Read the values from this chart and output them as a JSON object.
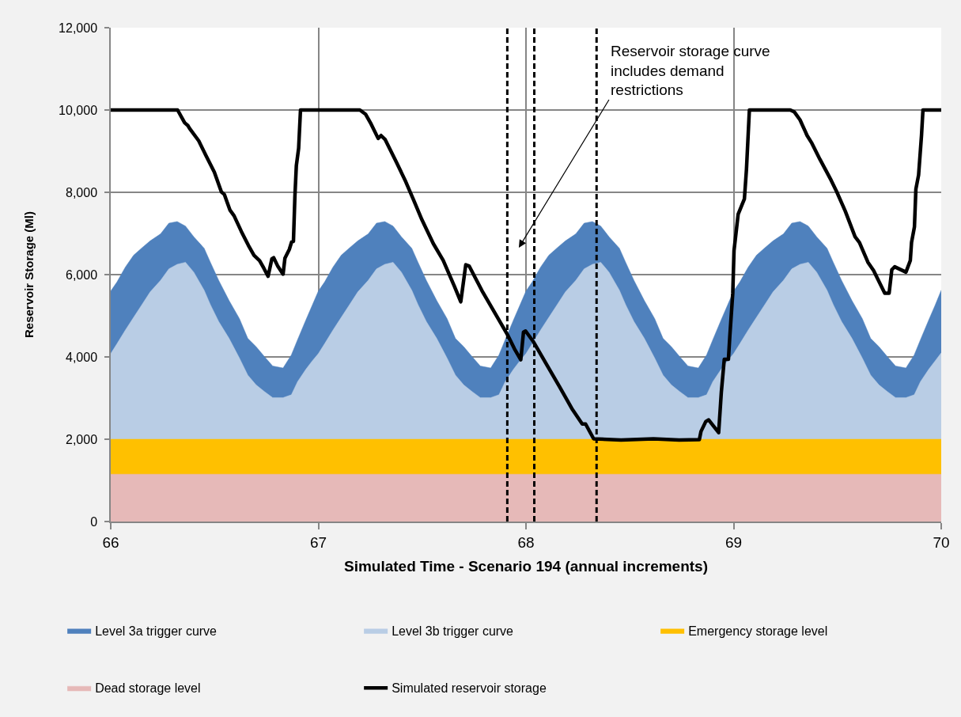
{
  "chart_data": {
    "type": "area",
    "xlabel": "Simulated Time - Scenario 194 (annual increments)",
    "ylabel": "Reservoir Storage (Ml)",
    "xlim": [
      66,
      70
    ],
    "xticks": [
      66,
      67,
      68,
      69,
      70
    ],
    "ylim": [
      0,
      12000
    ],
    "yticks": [
      0,
      {
        "value": 2000,
        "label": "2,000"
      },
      {
        "value": 4000,
        "label": "4,000"
      },
      {
        "value": 6000,
        "label": "6,000"
      },
      {
        "value": 8000,
        "label": "8,000"
      },
      {
        "value": 10000,
        "label": "10,000"
      },
      {
        "value": 12000,
        "label": "12,000"
      }
    ],
    "grid": true,
    "legend": "bottom",
    "x": [
      66,
      66.03,
      66.07,
      66.11,
      66.15,
      66.19,
      66.24,
      66.28,
      66.32,
      66.36,
      66.4,
      66.45,
      66.48,
      66.52,
      66.57,
      66.62,
      66.66,
      66.7,
      66.74,
      66.78,
      66.83,
      66.87,
      66.9,
      66.94,
      66.97,
      67,
      67.03,
      67.07,
      67.11,
      67.15,
      67.19,
      67.24,
      67.28,
      67.32,
      67.36,
      67.4,
      67.45,
      67.48,
      67.52,
      67.57,
      67.62,
      67.66,
      67.7,
      67.74,
      67.78,
      67.83,
      67.87,
      67.9,
      67.94,
      67.97,
      68,
      68.03,
      68.07,
      68.11,
      68.15,
      68.19,
      68.24,
      68.28,
      68.32,
      68.36,
      68.4,
      68.45,
      68.48,
      68.52,
      68.57,
      68.62,
      68.66,
      68.7,
      68.74,
      68.78,
      68.83,
      68.87,
      68.9,
      68.94,
      68.97,
      69,
      69.03,
      69.07,
      69.11,
      69.15,
      69.19,
      69.24,
      69.28,
      69.32,
      69.36,
      69.4,
      69.45,
      69.48,
      69.52,
      69.57,
      69.62,
      69.66,
      69.7,
      69.74,
      69.78,
      69.83,
      69.87,
      69.9,
      69.94,
      69.97,
      70
    ],
    "series": [
      {
        "name": "Level 3a trigger curve",
        "color": "#4f81bd",
        "values": [
          5600,
          5820,
          6180,
          6470,
          6650,
          6820,
          6990,
          7250,
          7290,
          7180,
          6920,
          6640,
          6300,
          5860,
          5370,
          4930,
          4450,
          4250,
          4010,
          3780,
          3730,
          4050,
          4420,
          4900,
          5250,
          5600,
          5820,
          6180,
          6470,
          6650,
          6820,
          6990,
          7250,
          7290,
          7180,
          6920,
          6640,
          6300,
          5860,
          5370,
          4930,
          4450,
          4250,
          4010,
          3780,
          3730,
          4050,
          4420,
          4900,
          5250,
          5600,
          5820,
          6180,
          6470,
          6650,
          6820,
          6990,
          7250,
          7290,
          7180,
          6920,
          6640,
          6300,
          5860,
          5370,
          4930,
          4450,
          4250,
          4010,
          3780,
          3730,
          4050,
          4420,
          4900,
          5250,
          5600,
          5820,
          6180,
          6470,
          6650,
          6820,
          6990,
          7250,
          7290,
          7180,
          6920,
          6640,
          6300,
          5860,
          5370,
          4930,
          4450,
          4250,
          4010,
          3780,
          3730,
          4050,
          4420,
          4900,
          5250,
          5620
        ]
      },
      {
        "name": "Level 3b trigger curve",
        "color": "#b9cde5",
        "values": [
          4080,
          4320,
          4650,
          4960,
          5270,
          5580,
          5860,
          6140,
          6250,
          6300,
          6060,
          5620,
          5270,
          4860,
          4450,
          3970,
          3560,
          3320,
          3160,
          3010,
          3010,
          3080,
          3400,
          3700,
          3900,
          4080,
          4320,
          4650,
          4960,
          5270,
          5580,
          5860,
          6140,
          6250,
          6300,
          6060,
          5620,
          5270,
          4860,
          4450,
          3970,
          3560,
          3320,
          3160,
          3010,
          3010,
          3080,
          3400,
          3700,
          3900,
          4080,
          4320,
          4650,
          4960,
          5270,
          5580,
          5860,
          6140,
          6250,
          6300,
          6060,
          5620,
          5270,
          4860,
          4450,
          3970,
          3560,
          3320,
          3160,
          3010,
          3010,
          3080,
          3400,
          3700,
          3900,
          4080,
          4320,
          4650,
          4960,
          5270,
          5580,
          5860,
          6140,
          6250,
          6300,
          6060,
          5620,
          5270,
          4860,
          4450,
          3970,
          3560,
          3320,
          3160,
          3010,
          3010,
          3080,
          3400,
          3700,
          3900,
          4100
        ]
      },
      {
        "name": "Emergency storage level",
        "color": "#ffc000",
        "x": [
          66,
          70
        ],
        "values": [
          2000,
          2000
        ]
      },
      {
        "name": "Dead storage level",
        "color": "#e6b9b8",
        "x": [
          66,
          70
        ],
        "values": [
          1150,
          1150
        ]
      },
      {
        "name": "Simulated reservoir storage",
        "type": "line",
        "color": "#000000",
        "x": [
          66,
          66.322,
          66.356,
          66.372,
          66.38,
          66.424,
          66.458,
          66.499,
          66.533,
          66.547,
          66.574,
          66.594,
          66.629,
          66.663,
          66.69,
          66.717,
          66.737,
          66.758,
          66.776,
          66.785,
          66.805,
          66.83,
          66.839,
          66.86,
          66.871,
          66.88,
          66.887,
          66.894,
          66.905,
          66.914,
          67.2,
          67.227,
          67.254,
          67.288,
          67.302,
          67.322,
          67.376,
          67.418,
          67.459,
          67.499,
          67.554,
          67.601,
          67.655,
          67.686,
          67.71,
          67.726,
          67.788,
          67.85,
          67.913,
          67.944,
          67.975,
          67.988,
          67.998,
          68.037,
          68.1,
          68.162,
          68.224,
          68.271,
          68.287,
          68.326,
          68.458,
          68.614,
          68.738,
          68.835,
          68.843,
          68.866,
          68.88,
          68.928,
          68.941,
          68.955,
          68.975,
          68.982,
          68.996,
          69.002,
          69.022,
          69.036,
          69.052,
          69.062,
          69.076,
          69.273,
          69.293,
          69.32,
          69.354,
          69.375,
          69.416,
          69.47,
          69.497,
          69.538,
          69.585,
          69.606,
          69.647,
          69.674,
          69.728,
          69.749,
          69.762,
          69.776,
          69.83,
          69.851,
          69.857,
          69.871,
          69.878,
          69.891,
          69.905,
          69.912,
          70
        ],
        "values": [
          10000,
          10000,
          9690,
          9620,
          9550,
          9250,
          8900,
          8490,
          8010,
          7950,
          7570,
          7430,
          7050,
          6710,
          6470,
          6340,
          6160,
          5960,
          6380,
          6410,
          6200,
          6010,
          6400,
          6610,
          6790,
          6810,
          7900,
          8650,
          9070,
          10000,
          10000,
          9900,
          9660,
          9310,
          9380,
          9280,
          8730,
          8290,
          7810,
          7330,
          6750,
          6350,
          5720,
          5340,
          6240,
          6210,
          5610,
          5070,
          4520,
          4200,
          3930,
          4600,
          4630,
          4360,
          3810,
          3270,
          2720,
          2370,
          2370,
          2010,
          1980,
          2010,
          1980,
          1990,
          2190,
          2430,
          2470,
          2160,
          3150,
          3940,
          3940,
          4520,
          5550,
          6580,
          7470,
          7640,
          7840,
          8560,
          10000,
          10000,
          9950,
          9760,
          9380,
          9210,
          8800,
          8290,
          8010,
          7540,
          6920,
          6780,
          6300,
          6100,
          5550,
          5550,
          6120,
          6190,
          6060,
          6340,
          6780,
          7160,
          8080,
          8420,
          9380,
          10000,
          10000
        ]
      }
    ],
    "ref_lines": [
      {
        "axis": "x",
        "value": 67.91,
        "color": "#000000",
        "line_style": "dashed"
      },
      {
        "axis": "x",
        "value": 68.04,
        "color": "#000000",
        "line_style": "dashed"
      },
      {
        "axis": "x",
        "value": 68.34,
        "color": "#000000",
        "line_style": "dashed"
      }
    ],
    "annotations": [
      "Reservoir storage curve includes demand restrictions"
    ]
  }
}
